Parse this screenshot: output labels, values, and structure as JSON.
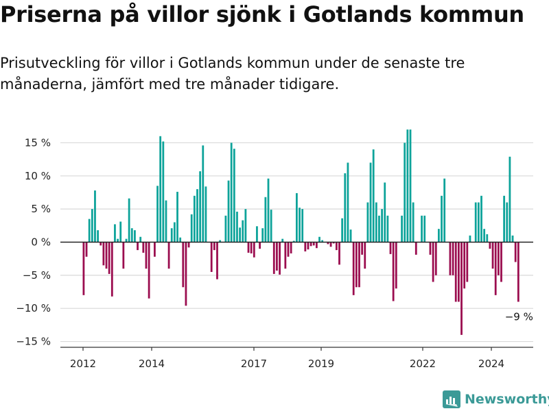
{
  "header": {
    "title": "Priserna på villor sjönk i Gotlands kommun",
    "subtitle": "Prisutveckling för villor i Gotlands kommun under de senaste tre månaderna, jämfört med tre månader tidigare."
  },
  "brand": {
    "name": "Newsworthy",
    "icon": "newsworthy-logo-icon",
    "color": "#3b9a97"
  },
  "chart_data": {
    "type": "bar",
    "title": "",
    "xlabel": "",
    "ylabel": "",
    "ylim": [
      -15.5,
      17
    ],
    "yticks": [
      15,
      10,
      5,
      0,
      -5,
      -10,
      -15
    ],
    "ytick_labels": [
      "15 %",
      "10 %",
      "5 %",
      "0 %",
      "−5 %",
      "−10 %",
      "−15 %"
    ],
    "xtick_labels": [
      "2012",
      "2014",
      "2017",
      "2019",
      "2022",
      "2024"
    ],
    "positive_color": "#0da39a",
    "negative_color": "#9b0d4f",
    "grid": true,
    "annotation": {
      "text": "−9 %",
      "attached_to": "last"
    },
    "values": [
      -8,
      -2.2,
      3.5,
      5,
      7.8,
      1.8,
      -0.5,
      -3.5,
      -4,
      -4.8,
      -8.2,
      2.7,
      0.5,
      3.1,
      -4,
      0.5,
      6.6,
      2.1,
      1.8,
      -1.2,
      0.8,
      -1.6,
      -4,
      -8.5,
      0,
      -2.2,
      8.5,
      16,
      15.2,
      6.3,
      -4,
      2.1,
      3,
      7.6,
      0.7,
      -6.8,
      -9.6,
      -0.8,
      4.2,
      7,
      8,
      10.7,
      14.6,
      8.4,
      0,
      -4.5,
      -1.2,
      -5.6,
      0.3,
      0,
      4,
      9.3,
      15,
      14.1,
      4.6,
      2.2,
      3.3,
      5,
      -1.6,
      -1.7,
      -2.3,
      2.4,
      -1,
      2.1,
      6.8,
      9.6,
      4.9,
      -4.8,
      -4.3,
      -4.9,
      0.5,
      -4,
      -2.2,
      -1.7,
      0.2,
      7.4,
      5.2,
      5,
      -1.4,
      -1.1,
      -0.6,
      -0.5,
      -0.9,
      0.8,
      0.3,
      0,
      -0.3,
      -0.7,
      -0.2,
      -1.2,
      -3.4,
      3.6,
      10.4,
      12,
      1.9,
      -8,
      -6.8,
      -6.8,
      -1.9,
      -4,
      6,
      12,
      14,
      6,
      4,
      5,
      9,
      4,
      -1.8,
      -8.9,
      -7,
      0,
      4,
      15,
      17,
      17,
      6,
      -1.9,
      0,
      4,
      4,
      0,
      -1.9,
      -6,
      -5,
      2,
      7,
      9.6,
      0,
      -5,
      -5,
      -9,
      -9,
      -14,
      -7,
      -6,
      1,
      0,
      6,
      6,
      7,
      2,
      1.2,
      -1,
      -4,
      -8,
      -5,
      -6,
      7,
      6,
      12.9,
      1,
      -3,
      -9
    ]
  }
}
